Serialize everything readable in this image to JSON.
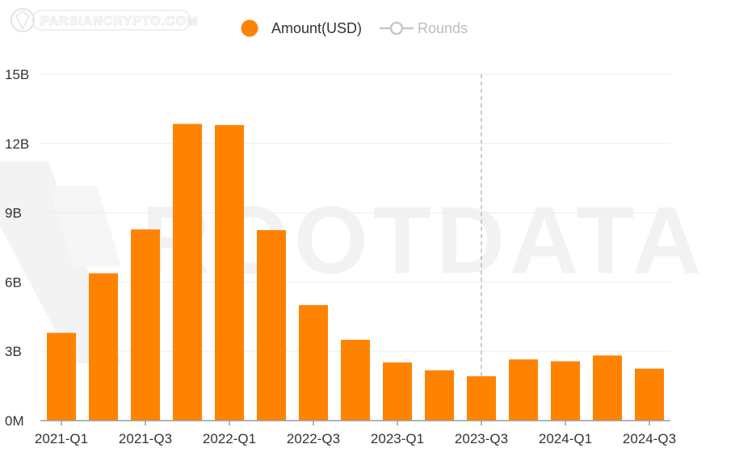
{
  "watermark": {
    "logo_text": "PARSIANCRYPTO.COM",
    "background_text": "ROOTDATA"
  },
  "colors": {
    "bar": "#FF8200",
    "grid": "#EEEEEE",
    "axis": "#9A9A9A",
    "marker_line": "#BBBBBB",
    "legend_inactive": "#BDBDBD",
    "text": "#333333"
  },
  "legend": {
    "position": "top-center",
    "items": [
      {
        "label": "Amount(USD)",
        "icon": "orange-circle-icon",
        "active": true
      },
      {
        "label": "Rounds",
        "icon": "line-circle-icon",
        "active": false
      }
    ]
  },
  "chart_data": {
    "type": "bar",
    "categories": [
      "2021-Q1",
      "2021-Q2",
      "2021-Q3",
      "2021-Q4",
      "2022-Q1",
      "2022-Q2",
      "2022-Q3",
      "2022-Q4",
      "2023-Q1",
      "2023-Q2",
      "2023-Q3",
      "2023-Q4",
      "2024-Q1",
      "2024-Q2",
      "2024-Q3"
    ],
    "x_tick_labels": [
      "2021-Q1",
      "2021-Q3",
      "2022-Q1",
      "2022-Q3",
      "2023-Q1",
      "2023-Q3",
      "2024-Q1",
      "2024-Q3"
    ],
    "series": [
      {
        "name": "Amount(USD)",
        "values": [
          3.8,
          6.38,
          8.28,
          12.85,
          12.8,
          8.25,
          5.0,
          3.5,
          2.52,
          2.18,
          1.92,
          2.65,
          2.57,
          2.82,
          2.25
        ]
      }
    ],
    "y_unit": "billions USD",
    "ylim": [
      0,
      15
    ],
    "y_ticks": [
      0,
      3,
      6,
      9,
      12,
      15
    ],
    "y_tick_labels": [
      "0M",
      "3B",
      "6B",
      "9B",
      "12B",
      "15B"
    ],
    "vertical_marker_category": "2023-Q3",
    "grid": true,
    "legend_position": "top-center",
    "title": "",
    "xlabel": "",
    "ylabel": ""
  }
}
